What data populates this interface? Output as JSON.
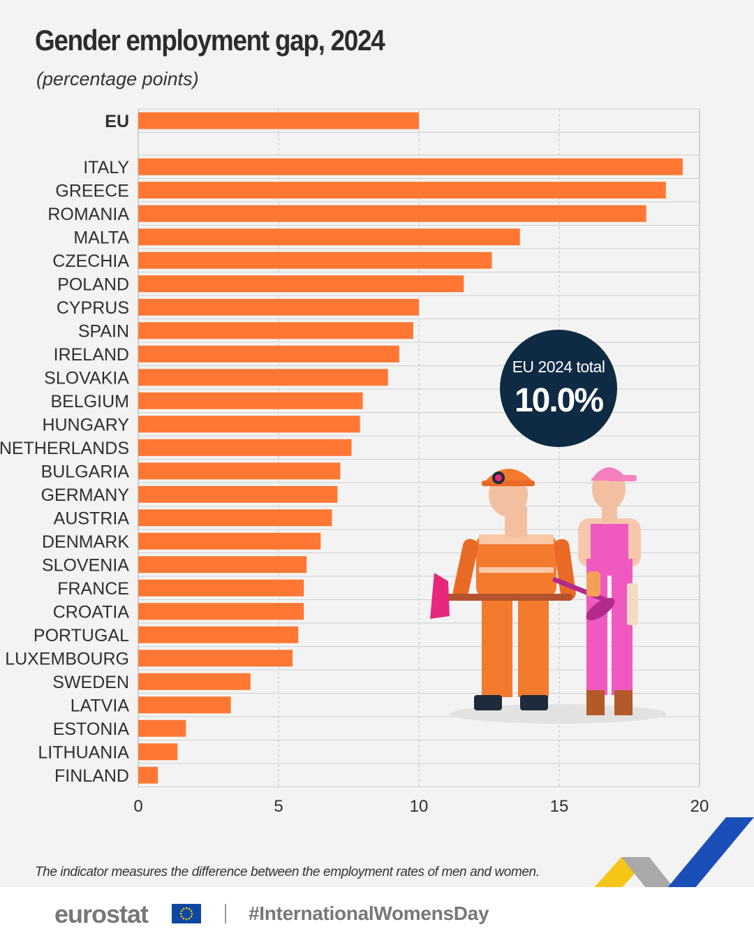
{
  "title": "Gender employment gap, 2024",
  "subtitle": "(percentage points)",
  "chart_data": {
    "type": "bar",
    "orientation": "horizontal",
    "title": "Gender employment gap, 2024",
    "unit": "percentage points",
    "xlim": [
      0,
      20
    ],
    "xticks": [
      0,
      5,
      10,
      15,
      20
    ],
    "grid": "vertical dashed",
    "aggregate": {
      "name": "EU",
      "value": 10.0
    },
    "categories": [
      "ITALY",
      "GREECE",
      "ROMANIA",
      "MALTA",
      "CZECHIA",
      "POLAND",
      "CYPRUS",
      "SPAIN",
      "IRELAND",
      "SLOVAKIA",
      "BELGIUM",
      "HUNGARY",
      "NETHERLANDS",
      "BULGARIA",
      "GERMANY",
      "AUSTRIA",
      "DENMARK",
      "SLOVENIA",
      "FRANCE",
      "CROATIA",
      "PORTUGAL",
      "LUXEMBOURG",
      "SWEDEN",
      "LATVIA",
      "ESTONIA",
      "LITHUANIA",
      "FINLAND"
    ],
    "values": [
      19.4,
      18.8,
      18.1,
      13.6,
      12.6,
      11.6,
      10.0,
      9.8,
      9.3,
      8.9,
      8.0,
      7.9,
      7.6,
      7.2,
      7.1,
      6.9,
      6.5,
      6.0,
      5.9,
      5.9,
      5.7,
      5.5,
      4.0,
      3.3,
      1.7,
      1.4,
      0.7
    ],
    "bar_color": "#ff7733"
  },
  "badge": {
    "label": "EU 2024 total",
    "value": "10.0%"
  },
  "footnote": "The indicator measures the difference between the employment rates of men and women.",
  "footer": {
    "brand": "eurostat",
    "hashtag": "#InternationalWomensDay"
  },
  "colors": {
    "bar": "#ff7733",
    "badge_bg": "#0f2a43",
    "grid": "#c8c8c8"
  },
  "icons": [
    "eu-flag-icon",
    "firefighter-illustration",
    "cleaner-illustration",
    "corner-chevron-mark"
  ]
}
